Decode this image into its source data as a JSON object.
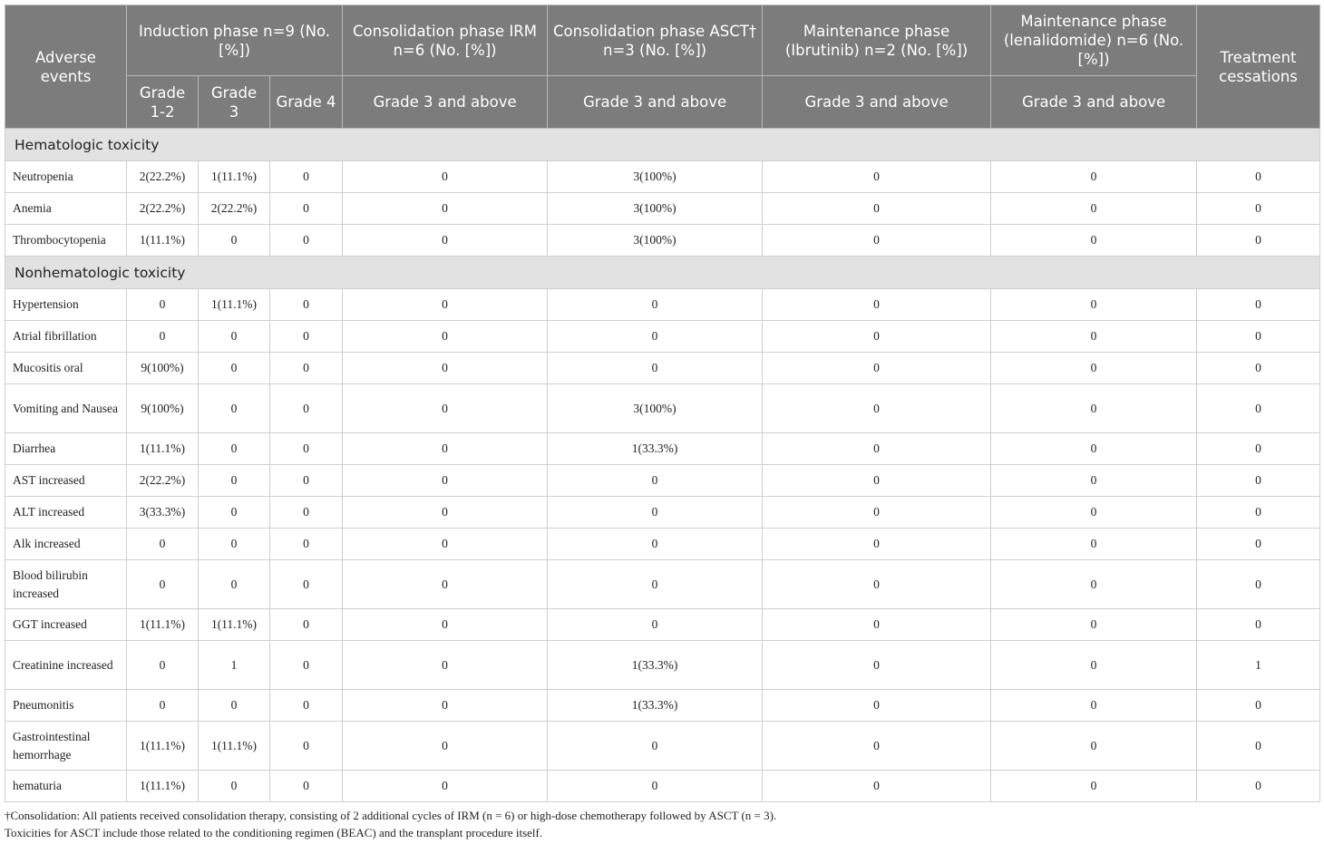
{
  "header": {
    "adverse_events": "Adverse events",
    "induction": "Induction phase n=9 (No. [%])",
    "consolidation_irm": "Consolidation phase IRM n=6 (No. [%])",
    "consolidation_asct": "Consolidation phase ASCT† n=3 (No. [%])",
    "maintenance_ibrutinib": "Maintenance phase (Ibrutinib) n=2 (No. [%])",
    "maintenance_lenalidomide": "Maintenance phase (lenalidomide) n=6 (No. [%])",
    "treatment_cessations": "Treatment cessations",
    "grade_1_2": "Grade 1-2",
    "grade_3": "Grade 3",
    "grade_4": "Grade 4",
    "grade_3_above": "Grade 3 and above"
  },
  "sections": [
    {
      "title": "Hematologic toxicity",
      "rows": [
        [
          "Neutropenia",
          "2(22.2%)",
          "1(11.1%)",
          "0",
          "0",
          "3(100%)",
          "0",
          "0",
          "0"
        ],
        [
          "Anemia",
          "2(22.2%)",
          "2(22.2%)",
          "0",
          "0",
          "3(100%)",
          "0",
          "0",
          "0"
        ],
        [
          "Thrombocytopenia",
          "1(11.1%)",
          "0",
          "0",
          "0",
          "3(100%)",
          "0",
          "0",
          "0"
        ]
      ]
    },
    {
      "title": "Nonhematologic toxicity",
      "rows": [
        [
          "Hypertension",
          "0",
          "1(11.1%)",
          "0",
          "0",
          "0",
          "0",
          "0",
          "0"
        ],
        [
          "Atrial fibrillation",
          "0",
          "0",
          "0",
          "0",
          "0",
          "0",
          "0",
          "0"
        ],
        [
          "Mucositis oral",
          "9(100%)",
          "0",
          "0",
          "0",
          "0",
          "0",
          "0",
          "0"
        ],
        [
          "Vomiting and Nausea",
          "9(100%)",
          "0",
          "0",
          "0",
          "3(100%)",
          "0",
          "0",
          "0"
        ],
        [
          "Diarrhea",
          "1(11.1%)",
          "0",
          "0",
          "0",
          "1(33.3%)",
          "0",
          "0",
          "0"
        ],
        [
          "AST increased",
          "2(22.2%)",
          "0",
          "0",
          "0",
          "0",
          "0",
          "0",
          "0"
        ],
        [
          "ALT increased",
          "3(33.3%)",
          "0",
          "0",
          "0",
          "0",
          "0",
          "0",
          "0"
        ],
        [
          "Alk increased",
          "0",
          "0",
          "0",
          "0",
          "0",
          "0",
          "0",
          "0"
        ],
        [
          "Blood bilirubin increased",
          "0",
          "0",
          "0",
          "0",
          "0",
          "0",
          "0",
          "0"
        ],
        [
          "GGT increased",
          "1(11.1%)",
          "1(11.1%)",
          "0",
          "0",
          "0",
          "0",
          "0",
          "0"
        ],
        [
          "Creatinine increased",
          "0",
          "1",
          "0",
          "0",
          "1(33.3%)",
          "0",
          "0",
          "1"
        ],
        [
          "Pneumonitis",
          "0",
          "0",
          "0",
          "0",
          "1(33.3%)",
          "0",
          "0",
          "0"
        ],
        [
          "Gastrointestinal hemorrhage",
          "1(11.1%)",
          "1(11.1%)",
          "0",
          "0",
          "0",
          "0",
          "0",
          "0"
        ],
        [
          "hematuria",
          "1(11.1%)",
          "0",
          "0",
          "0",
          "0",
          "0",
          "0",
          "0"
        ]
      ]
    }
  ],
  "footnotes": [
    "†Consolidation: All patients received consolidation therapy, consisting of 2 additional cycles of IRM (n = 6) or high-dose chemotherapy followed by ASCT (n = 3).",
    "Toxicities for ASCT include those related to the conditioning regimen (BEAC) and the transplant procedure itself."
  ]
}
